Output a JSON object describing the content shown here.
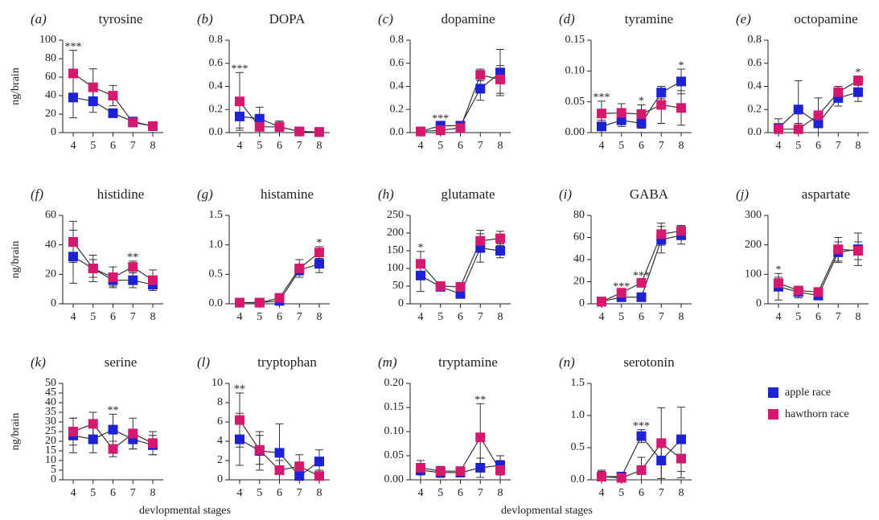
{
  "chart_data": {
    "type": "line",
    "legend": [
      {
        "name": "apple race",
        "color": "#1e22d6"
      },
      {
        "name": "hawthorn race",
        "color": "#d6186e"
      }
    ],
    "xlabels": [
      "devlopmental stages",
      "devlopmental stages"
    ],
    "panels": [
      {
        "label": "(a)",
        "title": "tyrosine",
        "ylabel": "ng/brain",
        "categories": [
          "4",
          "5",
          "6",
          "7",
          "8"
        ],
        "ylim": [
          0,
          100
        ],
        "yticks": [
          0,
          20,
          40,
          60,
          80,
          100
        ],
        "series": [
          {
            "values": [
              38,
              34,
              21,
              12,
              7
            ],
            "errors": [
              22,
              12,
              4,
              3,
              2
            ]
          },
          {
            "values": [
              64,
              49,
              40,
              11,
              7
            ],
            "errors": [
              25,
              20,
              11,
              3,
              2
            ]
          }
        ],
        "annotations": [
          {
            "category": "4",
            "text": "***"
          }
        ]
      },
      {
        "label": "(b)",
        "title": "DOPA",
        "categories": [
          "4",
          "5",
          "6",
          "7",
          "8"
        ],
        "ylim": [
          0,
          0.8
        ],
        "yticks": [
          {
            "value": 0,
            "label": "0.0"
          },
          0.2,
          0.4,
          0.6,
          0.8
        ],
        "series": [
          {
            "values": [
              0.14,
              0.12,
              0.05,
              0.01,
              0.005
            ],
            "errors": [
              0.1,
              0.1,
              0.05,
              0.01,
              0.01
            ]
          },
          {
            "values": [
              0.27,
              0.05,
              0.05,
              0.01,
              0.005
            ],
            "errors": [
              0.25,
              0.08,
              0.05,
              0.01,
              0.01
            ]
          }
        ],
        "annotations": [
          {
            "category": "4",
            "text": "***"
          }
        ]
      },
      {
        "label": "(c)",
        "title": "dopamine",
        "categories": [
          "4",
          "5",
          "6",
          "7",
          "8"
        ],
        "ylim": [
          0,
          0.8
        ],
        "yticks": [
          {
            "value": 0,
            "label": "0.0"
          },
          0.2,
          0.4,
          0.6,
          0.8
        ],
        "series": [
          {
            "values": [
              0.01,
              0.06,
              0.06,
              0.38,
              0.52
            ],
            "errors": [
              0.01,
              0.03,
              0.02,
              0.1,
              0.2
            ]
          },
          {
            "values": [
              0.01,
              0.02,
              0.04,
              0.5,
              0.46
            ],
            "errors": [
              0.01,
              0.02,
              0.02,
              0.05,
              0.12
            ]
          }
        ],
        "annotations": [
          {
            "category": "5",
            "text": "***"
          }
        ]
      },
      {
        "label": "(d)",
        "title": "tyramine",
        "categories": [
          "4",
          "5",
          "6",
          "7",
          "8"
        ],
        "ylim": [
          0,
          0.15
        ],
        "yticks": [
          {
            "value": 0,
            "label": "0.00"
          },
          0.05,
          {
            "value": 0.1,
            "label": "0.10"
          },
          0.15
        ],
        "series": [
          {
            "values": [
              0.01,
              0.02,
              0.015,
              0.065,
              0.083
            ],
            "errors": [
              0.01,
              0.01,
              0.008,
              0.01,
              0.02
            ]
          },
          {
            "values": [
              0.031,
              0.032,
              0.03,
              0.045,
              0.04
            ],
            "errors": [
              0.02,
              0.015,
              0.015,
              0.03,
              0.028
            ]
          }
        ],
        "annotations": [
          {
            "category": "4",
            "text": "***"
          },
          {
            "category": "6",
            "text": "*"
          },
          {
            "category": "8",
            "text": "*"
          }
        ]
      },
      {
        "label": "(e)",
        "title": "octopamine",
        "categories": [
          "4",
          "5",
          "6",
          "7",
          "8"
        ],
        "ylim": [
          0,
          0.8
        ],
        "yticks": [
          {
            "value": 0,
            "label": "0.0"
          },
          0.2,
          0.4,
          0.6,
          0.8
        ],
        "series": [
          {
            "values": [
              0.04,
              0.2,
              0.08,
              0.3,
              0.35
            ],
            "errors": [
              0.08,
              0.25,
              0.1,
              0.07,
              0.08
            ]
          },
          {
            "values": [
              0.03,
              0.03,
              0.15,
              0.35,
              0.45
            ],
            "errors": [
              0.03,
              0.05,
              0.15,
              0.05,
              0.04
            ]
          }
        ],
        "annotations": [
          {
            "category": "8",
            "text": "*"
          }
        ]
      },
      {
        "label": "(f)",
        "title": "histidine",
        "ylabel": "ng/brain",
        "categories": [
          "4",
          "5",
          "6",
          "7",
          "8"
        ],
        "ylim": [
          0,
          60
        ],
        "yticks": [
          0,
          20,
          40,
          60
        ],
        "series": [
          {
            "values": [
              32,
              24,
              16,
              16,
              13
            ],
            "errors": [
              18,
              6,
              4,
              5,
              3
            ]
          },
          {
            "values": [
              42,
              24,
              18,
              25,
              16
            ],
            "errors": [
              14,
              9,
              7,
              4,
              7
            ]
          }
        ],
        "annotations": [
          {
            "category": "7",
            "text": "**"
          }
        ]
      },
      {
        "label": "(g)",
        "title": "histamine",
        "categories": [
          "4",
          "5",
          "6",
          "7",
          "8"
        ],
        "ylim": [
          0,
          1.5
        ],
        "yticks": [
          {
            "value": 0,
            "label": "0.0"
          },
          0.5,
          {
            "value": 1,
            "label": "1.0"
          },
          1.5
        ],
        "series": [
          {
            "values": [
              0.02,
              0.02,
              0.05,
              0.57,
              0.68
            ],
            "errors": [
              0.02,
              0.02,
              0.05,
              0.08,
              0.15
            ]
          },
          {
            "values": [
              0.02,
              0.02,
              0.1,
              0.6,
              0.87
            ],
            "errors": [
              0.02,
              0.02,
              0.05,
              0.15,
              0.1
            ]
          }
        ],
        "annotations": [
          {
            "category": "8",
            "text": "*"
          }
        ]
      },
      {
        "label": "(h)",
        "title": "glutamate",
        "categories": [
          "4",
          "5",
          "6",
          "7",
          "8"
        ],
        "ylim": [
          0,
          250
        ],
        "yticks": [
          0,
          50,
          100,
          150,
          200,
          250
        ],
        "series": [
          {
            "values": [
              80,
              48,
              28,
              158,
              150
            ],
            "errors": [
              45,
              10,
              8,
              40,
              20
            ]
          },
          {
            "values": [
              113,
              50,
              48,
              178,
              185
            ],
            "errors": [
              35,
              10,
              10,
              30,
              20
            ]
          }
        ],
        "annotations": [
          {
            "category": "4",
            "text": "*"
          }
        ]
      },
      {
        "label": "(i)",
        "title": "GABA",
        "categories": [
          "4",
          "5",
          "6",
          "7",
          "8"
        ],
        "ylim": [
          0,
          80
        ],
        "yticks": [
          0,
          20,
          40,
          60,
          80
        ],
        "series": [
          {
            "values": [
              2,
              6,
              6,
              58,
              62
            ],
            "errors": [
              1,
              2,
              2,
              12,
              8
            ]
          },
          {
            "values": [
              2,
              10,
              19,
              63,
              66
            ],
            "errors": [
              1,
              2,
              3,
              10,
              5
            ]
          }
        ],
        "annotations": [
          {
            "category": "5",
            "text": "***"
          },
          {
            "category": "6",
            "text": "***"
          }
        ]
      },
      {
        "label": "(j)",
        "title": "aspartate",
        "categories": [
          "4",
          "5",
          "6",
          "7",
          "8"
        ],
        "ylim": [
          0,
          300
        ],
        "yticks": [
          0,
          100,
          200,
          300
        ],
        "series": [
          {
            "values": [
              58,
              40,
              28,
              175,
              185
            ],
            "errors": [
              45,
              20,
              10,
              35,
              55
            ]
          },
          {
            "values": [
              70,
              45,
              40,
              185,
              180
            ],
            "errors": [
              20,
              10,
              10,
              40,
              30
            ]
          }
        ],
        "annotations": [
          {
            "category": "4",
            "text": "*"
          }
        ]
      },
      {
        "label": "(k)",
        "title": "serine",
        "ylabel": "ng/brain",
        "categories": [
          "4",
          "5",
          "6",
          "7",
          "8"
        ],
        "ylim": [
          0,
          50
        ],
        "yticks": [
          0,
          5,
          10,
          15,
          20,
          25,
          30,
          35,
          40,
          45,
          50
        ],
        "series": [
          {
            "values": [
              23,
              21,
              26,
              21,
              18
            ],
            "errors": [
              9,
              7,
              8,
              5,
              5
            ]
          },
          {
            "values": [
              25,
              29,
              16,
              24,
              19
            ],
            "errors": [
              7,
              6,
              4,
              8,
              6
            ]
          }
        ],
        "annotations": [
          {
            "category": "6",
            "text": "**"
          }
        ]
      },
      {
        "label": "(l)",
        "title": "tryptophan",
        "categories": [
          "4",
          "5",
          "6",
          "7",
          "8"
        ],
        "ylim": [
          0,
          10
        ],
        "yticks": [
          0,
          2,
          4,
          6,
          8,
          10
        ],
        "series": [
          {
            "values": [
              4.2,
              3,
              2.8,
              0.4,
              1.9
            ],
            "errors": [
              2.7,
              2,
              3,
              1,
              1.2
            ]
          },
          {
            "values": [
              6.2,
              3.1,
              1,
              1.4,
              0.4
            ],
            "errors": [
              2.8,
              1.5,
              1,
              1.2,
              0.6
            ]
          }
        ],
        "annotations": [
          {
            "category": "4",
            "text": "**"
          }
        ]
      },
      {
        "label": "(m)",
        "title": "tryptamine",
        "categories": [
          "4",
          "5",
          "6",
          "7",
          "8"
        ],
        "ylim": [
          0,
          0.2
        ],
        "yticks": [
          {
            "value": 0,
            "label": "0.00"
          },
          0.05,
          {
            "value": 0.1,
            "label": "0.10"
          },
          0.15,
          {
            "value": 0.2,
            "label": "0.20"
          }
        ],
        "series": [
          {
            "values": [
              0.02,
              0.015,
              0.015,
              0.025,
              0.03
            ],
            "errors": [
              0.02,
              0.01,
              0.008,
              0.02,
              0.02
            ]
          },
          {
            "values": [
              0.025,
              0.018,
              0.018,
              0.088,
              0.02
            ],
            "errors": [
              0.015,
              0.01,
              0.008,
              0.07,
              0.02
            ]
          }
        ],
        "annotations": [
          {
            "category": "7",
            "text": "**"
          }
        ]
      },
      {
        "label": "(n)",
        "title": "serotonin",
        "categories": [
          "4",
          "5",
          "6",
          "7",
          "8"
        ],
        "ylim": [
          0,
          1.5
        ],
        "yticks": [
          {
            "value": 0,
            "label": "0.0"
          },
          0.5,
          {
            "value": 1,
            "label": "1.0"
          },
          1.5
        ],
        "series": [
          {
            "values": [
              0.05,
              0.05,
              0.68,
              0.3,
              0.63
            ],
            "errors": [
              0.1,
              0.05,
              0.1,
              0.3,
              0.5
            ]
          },
          {
            "values": [
              0.05,
              0.03,
              0.15,
              0.57,
              0.33
            ],
            "errors": [
              0.08,
              0.03,
              0.2,
              0.55,
              0.3
            ]
          }
        ],
        "annotations": [
          {
            "category": "6",
            "text": "***"
          }
        ]
      }
    ]
  }
}
